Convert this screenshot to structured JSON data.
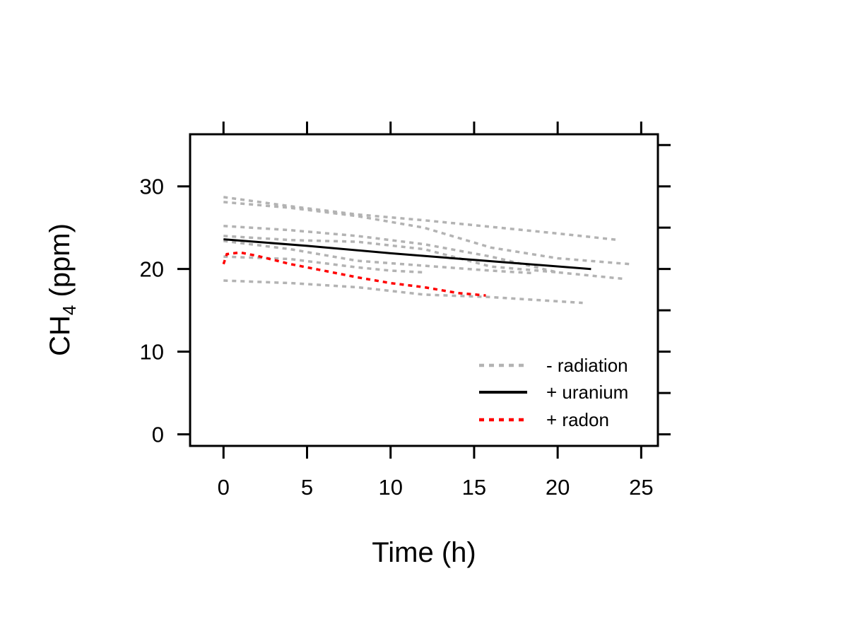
{
  "chart_data": {
    "type": "line",
    "title": "",
    "xlabel": "Time (h)",
    "ylabel": {
      "main": "CH",
      "sub": "4",
      "rest": " (ppm)"
    },
    "xlim": [
      -2,
      26
    ],
    "ylim": [
      -1.4,
      36.3
    ],
    "xticks": [
      0,
      5,
      10,
      15,
      20,
      25
    ],
    "yticks": [
      0,
      10,
      20,
      30
    ],
    "grid": false,
    "legend": {
      "position": "bottom-right",
      "entries": [
        {
          "label": "- radiation",
          "color": "#b3b3b3",
          "style": "dotted"
        },
        {
          "label": "+ uranium",
          "color": "#000000",
          "style": "solid"
        },
        {
          "label": "+ radon",
          "color": "#ff0000",
          "style": "dotted"
        }
      ]
    },
    "series": [
      {
        "group": "- radiation",
        "color": "#b3b3b3",
        "style": "dotted",
        "x": [
          0,
          4,
          8,
          12,
          16,
          20,
          23.7
        ],
        "y": [
          28.7,
          27.6,
          26.6,
          25.9,
          25.1,
          24.3,
          23.5
        ]
      },
      {
        "group": "- radiation",
        "color": "#b3b3b3",
        "style": "dotted",
        "x": [
          0,
          4,
          8,
          12,
          16,
          20,
          24.3
        ],
        "y": [
          28.1,
          27.4,
          26.4,
          25.0,
          22.6,
          21.3,
          20.6
        ]
      },
      {
        "group": "- radiation",
        "color": "#b3b3b3",
        "style": "dotted",
        "x": [
          0,
          4,
          8,
          12,
          16,
          20,
          24
        ],
        "y": [
          25.2,
          24.7,
          24.0,
          23.0,
          21.5,
          19.6,
          18.8
        ]
      },
      {
        "group": "- radiation",
        "color": "#b3b3b3",
        "style": "dotted",
        "x": [
          0,
          4,
          8,
          12,
          16,
          20
        ],
        "y": [
          24.0,
          23.5,
          23.3,
          22.4,
          20.3,
          19.6
        ]
      },
      {
        "group": "- radiation",
        "color": "#b3b3b3",
        "style": "dotted",
        "x": [
          0,
          4,
          8,
          12,
          16,
          18.5
        ],
        "y": [
          23.4,
          22.4,
          21.0,
          20.4,
          19.8,
          19.5
        ]
      },
      {
        "group": "- radiation",
        "color": "#b3b3b3",
        "style": "dotted",
        "x": [
          0,
          4,
          8,
          10,
          12
        ],
        "y": [
          21.5,
          21.2,
          20.2,
          19.8,
          19.6
        ]
      },
      {
        "group": "- radiation",
        "color": "#b3b3b3",
        "style": "dotted",
        "x": [
          0,
          4,
          8,
          12,
          16,
          21.5
        ],
        "y": [
          18.6,
          18.3,
          17.8,
          16.9,
          16.6,
          15.9
        ]
      },
      {
        "group": "+ uranium",
        "color": "#000000",
        "style": "solid",
        "x": [
          0,
          5,
          10,
          15,
          22
        ],
        "y": [
          23.6,
          22.8,
          21.9,
          21.1,
          20.0
        ]
      },
      {
        "group": "+ radon",
        "color": "#ff0000",
        "style": "dotted",
        "x": [
          0,
          0.2,
          1,
          2,
          4,
          6,
          8,
          10,
          12,
          14,
          15.7
        ],
        "y": [
          20.6,
          21.8,
          22.0,
          21.6,
          20.6,
          19.8,
          19.0,
          18.3,
          17.8,
          17.1,
          16.8
        ]
      }
    ]
  }
}
